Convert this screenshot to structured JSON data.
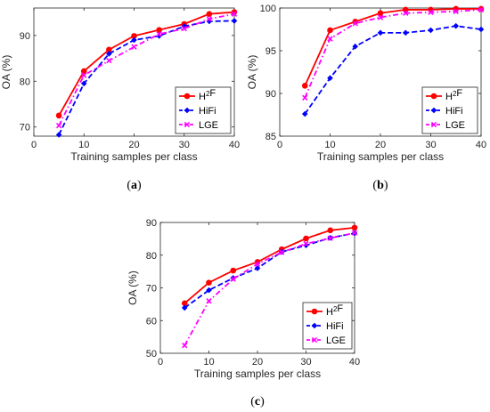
{
  "chart_data": [
    {
      "type": "line",
      "panel_label": "(a)",
      "xlabel": "Training samples per class",
      "ylabel": "OA (%)",
      "xlim": [
        0,
        40
      ],
      "ylim": [
        68,
        96
      ],
      "xticks": [
        0,
        10,
        20,
        30,
        40
      ],
      "yticks": [
        70,
        80,
        90
      ],
      "grid": false,
      "legend_position": "bottom-right",
      "x": [
        5,
        10,
        15,
        20,
        25,
        30,
        35,
        40
      ],
      "series": [
        {
          "name": "H²F",
          "values": [
            72.5,
            82.2,
            86.9,
            89.9,
            91.2,
            92.5,
            94.7,
            95.1
          ]
        },
        {
          "name": "HiFi",
          "values": [
            68.3,
            79.5,
            86.0,
            89.0,
            89.9,
            92.0,
            93.1,
            93.2
          ]
        },
        {
          "name": "LGE",
          "values": [
            70.3,
            81.3,
            84.5,
            87.5,
            90.3,
            91.5,
            93.6,
            94.7
          ]
        }
      ]
    },
    {
      "type": "line",
      "panel_label": "(b)",
      "xlabel": "Training samples per class",
      "ylabel": "OA (%)",
      "xlim": [
        0,
        40
      ],
      "ylim": [
        85,
        100
      ],
      "xticks": [
        0,
        10,
        20,
        30,
        40
      ],
      "yticks": [
        85,
        90,
        95,
        100
      ],
      "grid": false,
      "legend_position": "bottom-right",
      "x": [
        5,
        10,
        15,
        20,
        25,
        30,
        35,
        40
      ],
      "series": [
        {
          "name": "H²F",
          "values": [
            90.9,
            97.4,
            98.4,
            99.4,
            99.8,
            99.8,
            99.9,
            99.9
          ]
        },
        {
          "name": "HiFi",
          "values": [
            87.6,
            91.8,
            95.5,
            97.1,
            97.1,
            97.4,
            97.9,
            97.5
          ]
        },
        {
          "name": "LGE",
          "values": [
            89.5,
            96.4,
            98.2,
            98.9,
            99.4,
            99.5,
            99.6,
            99.8
          ]
        }
      ]
    },
    {
      "type": "line",
      "panel_label": "(c)",
      "xlabel": "Training samples per class",
      "ylabel": "OA (%)",
      "xlim": [
        0,
        40
      ],
      "ylim": [
        50,
        90
      ],
      "xticks": [
        0,
        10,
        20,
        30,
        40
      ],
      "yticks": [
        50,
        60,
        70,
        80,
        90
      ],
      "grid": false,
      "legend_position": "middle-right",
      "x": [
        5,
        10,
        15,
        20,
        25,
        30,
        35,
        40
      ],
      "series": [
        {
          "name": "H²F",
          "values": [
            65.3,
            71.6,
            75.3,
            77.9,
            81.8,
            85.1,
            87.6,
            88.4
          ]
        },
        {
          "name": "HiFi",
          "values": [
            63.9,
            69.3,
            73.0,
            76.0,
            81.0,
            83.0,
            85.3,
            86.7
          ]
        },
        {
          "name": "LGE",
          "values": [
            52.4,
            66.0,
            72.7,
            77.3,
            80.9,
            83.5,
            85.2,
            86.8
          ]
        }
      ]
    }
  ],
  "styles": {
    "series_colors": [
      "#ff0000",
      "#0000ff",
      "#ff00ff"
    ],
    "series_dash": [
      "solid",
      "dashed",
      "dashdot"
    ],
    "series_markers": [
      "circle",
      "diamond",
      "x"
    ],
    "axis_color": "#262626"
  }
}
